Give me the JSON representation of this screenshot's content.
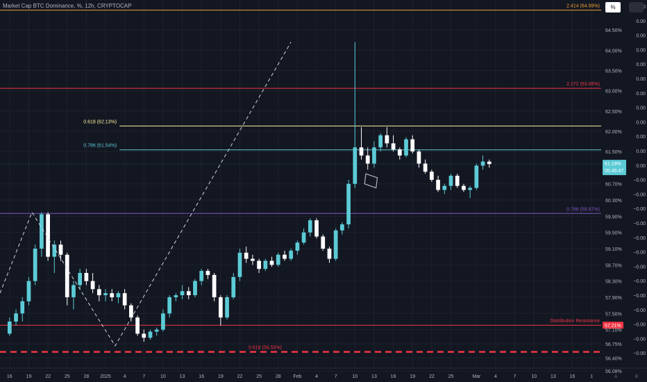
{
  "header": {
    "title": "Market Cap BTC Dominance, %, 12h, CRYPTOCAP",
    "percent_button": "%"
  },
  "colors": {
    "up": "#5ccbd6",
    "down": "#ffffff",
    "background": "#131722",
    "grid": "#1e222d",
    "axis_text": "#b2b5be"
  },
  "chart_data": {
    "type": "candlestick",
    "title": "Market Cap BTC Dominance, %, 12h, CRYPTOCAP",
    "ylim": [
      56.15,
      65.0
    ],
    "y_ticks": [
      "64.50%",
      "64.00%",
      "63.50%",
      "63.00%",
      "62.50%",
      "62.00%",
      "61.50%",
      "60.70%",
      "60.30%",
      "59.90%",
      "59.50%",
      "59.10%",
      "58.70%",
      "58.30%",
      "57.90%",
      "57.50%",
      "57.10%",
      "56.75%",
      "56.40%",
      "56.08%"
    ],
    "y_tick_values": [
      64.5,
      64.0,
      63.5,
      63.0,
      62.5,
      62.0,
      61.5,
      60.7,
      60.3,
      59.9,
      59.5,
      59.1,
      58.7,
      58.3,
      57.9,
      57.5,
      57.1,
      56.75,
      56.4,
      56.08
    ],
    "right_values": [
      "0.00",
      "0.00",
      "0.00",
      "0.00",
      "0.00",
      "0.00",
      "0.00",
      "0.00",
      "0.00",
      "0.00",
      "0.00",
      "0.00",
      "−0.00",
      "−0.00",
      "−0.00",
      "−0.00",
      "−0.00",
      "−0.00",
      "−0.00",
      "−0.00",
      "−0.00",
      "−0.00",
      "−0.00",
      "−0.00",
      "−0.00"
    ],
    "x_ticks": [
      "16",
      "19",
      "22",
      "25",
      "28",
      "2025",
      "4",
      "7",
      "10",
      "13",
      "16",
      "19",
      "22",
      "25",
      "28",
      "Feb",
      "4",
      "7",
      "10",
      "13",
      "16",
      "19",
      "22",
      "25",
      "Mar",
      "4",
      "7",
      "10",
      "13",
      "16",
      "1"
    ],
    "x_tick_values": [
      0,
      3,
      6,
      9,
      12,
      15,
      18,
      21,
      24,
      27,
      30,
      33,
      36,
      39,
      42,
      45,
      48,
      51,
      54,
      57,
      60,
      63,
      66,
      69,
      73,
      76,
      79,
      82,
      85,
      88,
      91
    ],
    "x_range": [
      -1.5,
      92.5
    ],
    "axis_icons": [
      "A",
      "B"
    ],
    "last_price": {
      "value": "61.19%",
      "countdown": "05:45:47",
      "y": 61.19
    },
    "levels": [
      {
        "label": "2.414 (64.99%)",
        "value": 64.99,
        "color": "#f0a030",
        "x_start": -1.5,
        "style": "solid"
      },
      {
        "label": "2.272 (63.06%)",
        "value": 63.06,
        "color": "#f23645",
        "x_start": -1.5,
        "style": "solid"
      },
      {
        "label": "0.618 (62.13%)",
        "value": 62.13,
        "color": "#fff2a0",
        "x_start": 17.2,
        "style": "solid"
      },
      {
        "label": "0.786 (61.54%)",
        "value": 61.54,
        "color": "#5ccbd6",
        "x_start": 17.2,
        "style": "solid"
      },
      {
        "label": "0.786 (59.97%)",
        "value": 59.97,
        "color": "#7e57c2",
        "x_start": -1.5,
        "style": "solid"
      },
      {
        "label": "Distribution Resistance",
        "value": 57.21,
        "color": "#f23645",
        "x_start": -1.5,
        "style": "solid",
        "badge": "57.21%"
      },
      {
        "label": "0.618 (56.55%)",
        "value": 56.55,
        "color": "#f23645",
        "x_start": -1.5,
        "style": "dashed"
      }
    ],
    "projection_lines": [
      {
        "points": [
          [
            -1.5,
            58.0
          ],
          [
            3.5,
            60.0
          ],
          [
            16.5,
            56.7
          ],
          [
            44.0,
            64.2
          ]
        ]
      }
    ],
    "highlight_box": [
      [
        55.7,
        60.95
      ],
      [
        57.5,
        60.85
      ],
      [
        57.3,
        60.6
      ],
      [
        55.5,
        60.7
      ]
    ],
    "candles": [
      {
        "o": 57.0,
        "h": 57.4,
        "l": 56.95,
        "c": 57.3
      },
      {
        "o": 57.3,
        "h": 57.6,
        "l": 57.2,
        "c": 57.5
      },
      {
        "o": 57.5,
        "h": 57.9,
        "l": 57.3,
        "c": 57.8
      },
      {
        "o": 57.8,
        "h": 58.4,
        "l": 57.7,
        "c": 58.3
      },
      {
        "o": 58.3,
        "h": 59.2,
        "l": 58.2,
        "c": 59.1
      },
      {
        "o": 59.1,
        "h": 60.0,
        "l": 58.9,
        "c": 59.95
      },
      {
        "o": 59.95,
        "h": 60.0,
        "l": 58.8,
        "c": 58.9
      },
      {
        "o": 58.9,
        "h": 59.3,
        "l": 58.5,
        "c": 59.2
      },
      {
        "o": 59.2,
        "h": 59.3,
        "l": 58.8,
        "c": 58.95
      },
      {
        "o": 58.95,
        "h": 59.0,
        "l": 57.7,
        "c": 57.9
      },
      {
        "o": 57.9,
        "h": 58.3,
        "l": 57.6,
        "c": 58.2
      },
      {
        "o": 58.2,
        "h": 58.6,
        "l": 58.1,
        "c": 58.5
      },
      {
        "o": 58.5,
        "h": 58.6,
        "l": 58.2,
        "c": 58.3
      },
      {
        "o": 58.3,
        "h": 58.5,
        "l": 58.0,
        "c": 58.1
      },
      {
        "o": 58.1,
        "h": 58.2,
        "l": 57.8,
        "c": 57.95
      },
      {
        "o": 57.95,
        "h": 58.1,
        "l": 57.8,
        "c": 58.0
      },
      {
        "o": 58.0,
        "h": 58.1,
        "l": 57.8,
        "c": 57.9
      },
      {
        "o": 57.9,
        "h": 58.05,
        "l": 57.75,
        "c": 58.0
      },
      {
        "o": 58.0,
        "h": 58.1,
        "l": 57.6,
        "c": 57.7
      },
      {
        "o": 57.7,
        "h": 57.75,
        "l": 57.3,
        "c": 57.4
      },
      {
        "o": 57.4,
        "h": 57.45,
        "l": 56.95,
        "c": 57.0
      },
      {
        "o": 57.0,
        "h": 57.1,
        "l": 56.8,
        "c": 56.9
      },
      {
        "o": 56.9,
        "h": 57.1,
        "l": 56.85,
        "c": 57.05
      },
      {
        "o": 57.05,
        "h": 57.15,
        "l": 56.95,
        "c": 57.1
      },
      {
        "o": 57.1,
        "h": 57.6,
        "l": 57.05,
        "c": 57.5
      },
      {
        "o": 57.5,
        "h": 57.95,
        "l": 57.4,
        "c": 57.9
      },
      {
        "o": 57.9,
        "h": 58.0,
        "l": 57.8,
        "c": 57.95
      },
      {
        "o": 57.95,
        "h": 58.2,
        "l": 57.85,
        "c": 58.05
      },
      {
        "o": 58.05,
        "h": 58.15,
        "l": 57.85,
        "c": 57.95
      },
      {
        "o": 57.95,
        "h": 58.35,
        "l": 57.9,
        "c": 58.3
      },
      {
        "o": 58.3,
        "h": 58.6,
        "l": 58.2,
        "c": 58.55
      },
      {
        "o": 58.55,
        "h": 58.6,
        "l": 58.35,
        "c": 58.45
      },
      {
        "o": 58.45,
        "h": 58.5,
        "l": 57.8,
        "c": 57.9
      },
      {
        "o": 57.9,
        "h": 57.95,
        "l": 57.2,
        "c": 57.4
      },
      {
        "o": 57.4,
        "h": 57.95,
        "l": 57.35,
        "c": 57.9
      },
      {
        "o": 57.9,
        "h": 58.5,
        "l": 57.85,
        "c": 58.4
      },
      {
        "o": 58.4,
        "h": 59.1,
        "l": 58.3,
        "c": 59.0
      },
      {
        "o": 59.0,
        "h": 59.15,
        "l": 58.75,
        "c": 58.85
      },
      {
        "o": 58.85,
        "h": 58.95,
        "l": 58.7,
        "c": 58.8
      },
      {
        "o": 58.8,
        "h": 58.85,
        "l": 58.5,
        "c": 58.6
      },
      {
        "o": 58.6,
        "h": 58.85,
        "l": 58.55,
        "c": 58.8
      },
      {
        "o": 58.8,
        "h": 58.9,
        "l": 58.65,
        "c": 58.7
      },
      {
        "o": 58.7,
        "h": 59.0,
        "l": 58.65,
        "c": 58.95
      },
      {
        "o": 58.95,
        "h": 59.05,
        "l": 58.8,
        "c": 58.85
      },
      {
        "o": 58.85,
        "h": 59.1,
        "l": 58.8,
        "c": 59.05
      },
      {
        "o": 59.05,
        "h": 59.3,
        "l": 58.95,
        "c": 59.25
      },
      {
        "o": 59.25,
        "h": 59.6,
        "l": 59.2,
        "c": 59.5
      },
      {
        "o": 59.5,
        "h": 59.85,
        "l": 59.4,
        "c": 59.8
      },
      {
        "o": 59.8,
        "h": 59.85,
        "l": 59.35,
        "c": 59.4
      },
      {
        "o": 59.4,
        "h": 59.45,
        "l": 59.05,
        "c": 59.1
      },
      {
        "o": 59.1,
        "h": 59.15,
        "l": 58.75,
        "c": 58.85
      },
      {
        "o": 58.85,
        "h": 59.6,
        "l": 58.8,
        "c": 59.55
      },
      {
        "o": 59.55,
        "h": 59.75,
        "l": 59.45,
        "c": 59.7
      },
      {
        "o": 59.7,
        "h": 60.8,
        "l": 59.6,
        "c": 60.7
      },
      {
        "o": 60.7,
        "h": 64.2,
        "l": 60.6,
        "c": 61.6
      },
      {
        "o": 61.6,
        "h": 62.1,
        "l": 61.3,
        "c": 61.4
      },
      {
        "o": 61.4,
        "h": 61.6,
        "l": 61.05,
        "c": 61.2
      },
      {
        "o": 61.2,
        "h": 61.75,
        "l": 61.1,
        "c": 61.6
      },
      {
        "o": 61.6,
        "h": 61.95,
        "l": 61.5,
        "c": 61.9
      },
      {
        "o": 61.9,
        "h": 62.1,
        "l": 61.6,
        "c": 61.7
      },
      {
        "o": 61.7,
        "h": 61.9,
        "l": 61.5,
        "c": 61.55
      },
      {
        "o": 61.55,
        "h": 61.6,
        "l": 61.3,
        "c": 61.4
      },
      {
        "o": 61.4,
        "h": 61.85,
        "l": 61.35,
        "c": 61.8
      },
      {
        "o": 61.8,
        "h": 61.9,
        "l": 61.45,
        "c": 61.5
      },
      {
        "o": 61.5,
        "h": 61.55,
        "l": 61.1,
        "c": 61.2
      },
      {
        "o": 61.2,
        "h": 61.3,
        "l": 60.95,
        "c": 61.0
      },
      {
        "o": 61.0,
        "h": 61.05,
        "l": 60.75,
        "c": 60.8
      },
      {
        "o": 60.8,
        "h": 60.9,
        "l": 60.5,
        "c": 60.55
      },
      {
        "o": 60.55,
        "h": 60.7,
        "l": 60.45,
        "c": 60.65
      },
      {
        "o": 60.65,
        "h": 60.95,
        "l": 60.55,
        "c": 60.9
      },
      {
        "o": 60.9,
        "h": 60.95,
        "l": 60.6,
        "c": 60.65
      },
      {
        "o": 60.65,
        "h": 60.7,
        "l": 60.5,
        "c": 60.55
      },
      {
        "o": 60.55,
        "h": 60.65,
        "l": 60.35,
        "c": 60.6
      },
      {
        "o": 60.6,
        "h": 61.2,
        "l": 60.55,
        "c": 61.15
      },
      {
        "o": 61.15,
        "h": 61.4,
        "l": 61.05,
        "c": 61.25
      },
      {
        "o": 61.25,
        "h": 61.3,
        "l": 61.1,
        "c": 61.19
      }
    ]
  }
}
